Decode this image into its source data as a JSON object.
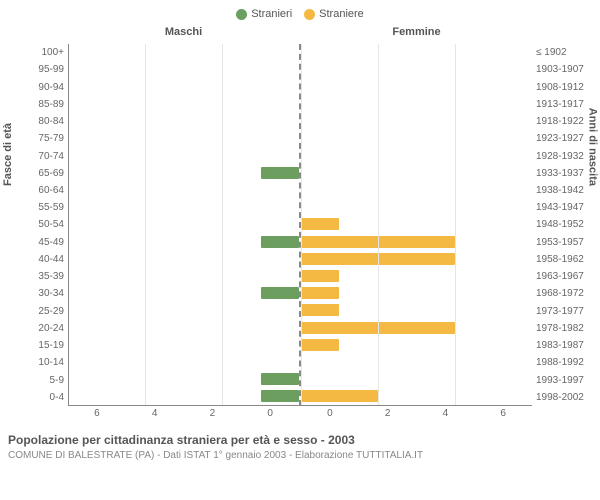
{
  "legend": {
    "male": {
      "label": "Stranieri",
      "color": "#6b9e5f"
    },
    "female": {
      "label": "Straniere",
      "color": "#f4b942"
    }
  },
  "chart": {
    "type": "bar",
    "male_title": "Maschi",
    "female_title": "Femmine",
    "y_axis_left_title": "Fasce di età",
    "y_axis_right_title": "Anni di nascita",
    "xmax": 6,
    "xticks_left": [
      "6",
      "4",
      "2",
      "0"
    ],
    "xticks_right": [
      "0",
      "2",
      "4",
      "6"
    ],
    "grid_color": "#e6e6e6",
    "background_color": "#ffffff",
    "male_color": "#6b9e5f",
    "female_color": "#f4b942",
    "rows": [
      {
        "age": "100+",
        "years": "≤ 1902",
        "m": 0,
        "f": 0
      },
      {
        "age": "95-99",
        "years": "1903-1907",
        "m": 0,
        "f": 0
      },
      {
        "age": "90-94",
        "years": "1908-1912",
        "m": 0,
        "f": 0
      },
      {
        "age": "85-89",
        "years": "1913-1917",
        "m": 0,
        "f": 0
      },
      {
        "age": "80-84",
        "years": "1918-1922",
        "m": 0,
        "f": 0
      },
      {
        "age": "75-79",
        "years": "1923-1927",
        "m": 0,
        "f": 0
      },
      {
        "age": "70-74",
        "years": "1928-1932",
        "m": 0,
        "f": 0
      },
      {
        "age": "65-69",
        "years": "1933-1937",
        "m": 1,
        "f": 0
      },
      {
        "age": "60-64",
        "years": "1938-1942",
        "m": 0,
        "f": 0
      },
      {
        "age": "55-59",
        "years": "1943-1947",
        "m": 0,
        "f": 0
      },
      {
        "age": "50-54",
        "years": "1948-1952",
        "m": 0,
        "f": 1
      },
      {
        "age": "45-49",
        "years": "1953-1957",
        "m": 1,
        "f": 4
      },
      {
        "age": "40-44",
        "years": "1958-1962",
        "m": 0,
        "f": 4
      },
      {
        "age": "35-39",
        "years": "1963-1967",
        "m": 0,
        "f": 1
      },
      {
        "age": "30-34",
        "years": "1968-1972",
        "m": 1,
        "f": 1
      },
      {
        "age": "25-29",
        "years": "1973-1977",
        "m": 0,
        "f": 1
      },
      {
        "age": "20-24",
        "years": "1978-1982",
        "m": 0,
        "f": 4
      },
      {
        "age": "15-19",
        "years": "1983-1987",
        "m": 0,
        "f": 1
      },
      {
        "age": "10-14",
        "years": "1988-1992",
        "m": 0,
        "f": 0
      },
      {
        "age": "5-9",
        "years": "1993-1997",
        "m": 1,
        "f": 0
      },
      {
        "age": "0-4",
        "years": "1998-2002",
        "m": 1,
        "f": 2
      }
    ]
  },
  "footer": {
    "title": "Popolazione per cittadinanza straniera per età e sesso - 2003",
    "subtitle": "COMUNE DI BALESTRATE (PA) - Dati ISTAT 1° gennaio 2003 - Elaborazione TUTTITALIA.IT"
  }
}
